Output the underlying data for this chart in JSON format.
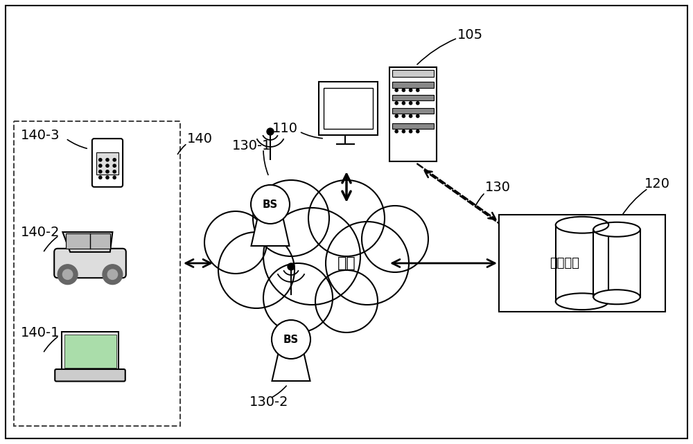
{
  "bg_color": "#ffffff",
  "border_color": "#000000",
  "label_105": "105",
  "label_110": "110",
  "label_120": "120",
  "label_130": "130",
  "label_130_1": "130-1",
  "label_130_2": "130-2",
  "label_140": "140",
  "label_140_1": "140-1",
  "label_140_2": "140-2",
  "label_140_3": "140-3",
  "network_text": "网络",
  "storage_text": "存储设备",
  "font_size_label": 14,
  "font_size_text": 14
}
